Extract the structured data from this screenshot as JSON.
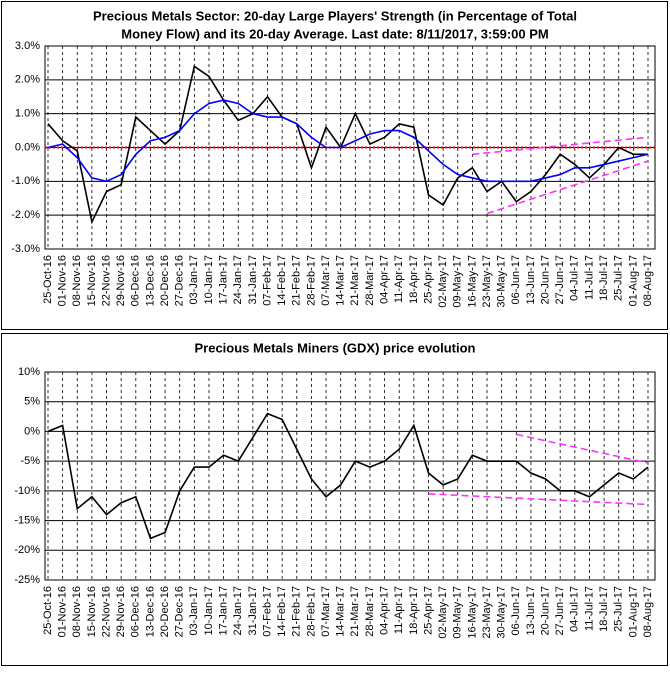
{
  "chart_data": [
    {
      "type": "line",
      "title": [
        "Precious Metals Sector: 20-day Large Players' Strength (in Percentage of Total",
        "Money Flow) and its 20-day Average. Last date: 8/11/2017, 3:59:00 PM"
      ],
      "categories": [
        "25-Oct-16",
        "01-Nov-16",
        "08-Nov-16",
        "15-Nov-16",
        "22-Nov-16",
        "29-Nov-16",
        "06-Dec-16",
        "13-Dec-16",
        "20-Dec-16",
        "27-Dec-16",
        "03-Jan-17",
        "10-Jan-17",
        "17-Jan-17",
        "24-Jan-17",
        "31-Jan-17",
        "07-Feb-17",
        "14-Feb-17",
        "21-Feb-17",
        "28-Feb-17",
        "07-Mar-17",
        "14-Mar-17",
        "21-Mar-17",
        "28-Mar-17",
        "04-Apr-17",
        "11-Apr-17",
        "18-Apr-17",
        "25-Apr-17",
        "02-May-17",
        "09-May-17",
        "16-May-17",
        "23-May-17",
        "30-May-17",
        "06-Jun-17",
        "13-Jun-17",
        "20-Jun-17",
        "27-Jun-17",
        "04-Jul-17",
        "11-Jul-17",
        "18-Jul-17",
        "25-Jul-17",
        "01-Aug-17",
        "08-Aug-17"
      ],
      "series": [
        {
          "color": "#000000",
          "values": [
            0.7,
            0.2,
            -0.1,
            -2.2,
            -1.3,
            -1.1,
            0.9,
            0.5,
            0.1,
            0.5,
            2.4,
            2.1,
            1.4,
            0.8,
            1.0,
            1.5,
            0.9,
            0.7,
            -0.6,
            0.6,
            0.0,
            1.0,
            0.1,
            0.3,
            0.7,
            0.6,
            -1.4,
            -1.7,
            -0.9,
            -0.6,
            -1.3,
            -1.0,
            -1.6,
            -1.3,
            -0.8,
            -0.2,
            -0.5,
            -0.9,
            -0.5,
            0.0,
            -0.2,
            -0.2
          ]
        },
        {
          "color": "#0000ff",
          "values": [
            0.0,
            0.1,
            -0.3,
            -0.9,
            -1.0,
            -0.8,
            -0.2,
            0.2,
            0.3,
            0.5,
            1.0,
            1.3,
            1.4,
            1.3,
            1.0,
            0.9,
            0.9,
            0.7,
            0.3,
            0.0,
            0.0,
            0.2,
            0.4,
            0.5,
            0.5,
            0.3,
            -0.1,
            -0.5,
            -0.8,
            -0.9,
            -1.0,
            -1.0,
            -1.0,
            -1.0,
            -0.9,
            -0.8,
            -0.6,
            -0.6,
            -0.5,
            -0.4,
            -0.3,
            -0.2
          ]
        }
      ],
      "reference_line": {
        "value": 0,
        "color": "#ff0000"
      },
      "trendlines": [
        {
          "x": [
            "16-May-17",
            "08-Aug-17"
          ],
          "values": [
            -0.2,
            0.3
          ],
          "color": "#ff33ff"
        },
        {
          "x": [
            "23-May-17",
            "08-Aug-17"
          ],
          "values": [
            -1.95,
            -0.4
          ],
          "color": "#ff33ff"
        }
      ],
      "ylim": [
        -3,
        3
      ],
      "yticks": [
        {
          "value": -3,
          "label": "-3.0%"
        },
        {
          "value": -2,
          "label": "-2.0%"
        },
        {
          "value": -1,
          "label": "-1.0%"
        },
        {
          "value": 0,
          "label": "0.0%"
        },
        {
          "value": 1,
          "label": "1.0%"
        },
        {
          "value": 2,
          "label": "2.0%"
        },
        {
          "value": 3,
          "label": "3.0%"
        }
      ],
      "grid": true
    },
    {
      "type": "line",
      "title": [
        "Precious Metals Miners (GDX) price evolution"
      ],
      "categories": [
        "25-Oct-16",
        "01-Nov-16",
        "08-Nov-16",
        "15-Nov-16",
        "22-Nov-16",
        "29-Nov-16",
        "06-Dec-16",
        "13-Dec-16",
        "20-Dec-16",
        "27-Dec-16",
        "03-Jan-17",
        "10-Jan-17",
        "17-Jan-17",
        "24-Jan-17",
        "31-Jan-17",
        "07-Feb-17",
        "14-Feb-17",
        "21-Feb-17",
        "28-Feb-17",
        "07-Mar-17",
        "14-Mar-17",
        "21-Mar-17",
        "28-Mar-17",
        "04-Apr-17",
        "11-Apr-17",
        "18-Apr-17",
        "25-Apr-17",
        "02-May-17",
        "09-May-17",
        "16-May-17",
        "23-May-17",
        "30-May-17",
        "06-Jun-17",
        "13-Jun-17",
        "20-Jun-17",
        "27-Jun-17",
        "04-Jul-17",
        "11-Jul-17",
        "18-Jul-17",
        "25-Jul-17",
        "01-Aug-17",
        "08-Aug-17"
      ],
      "series": [
        {
          "color": "#000000",
          "values": [
            0,
            1,
            -13,
            -11,
            -14,
            -12,
            -11,
            -18,
            -17,
            -10,
            -6,
            -6,
            -4,
            -5,
            -1,
            3,
            2,
            -3,
            -8,
            -11,
            -9,
            -5,
            -6,
            -5,
            -3,
            1,
            -7,
            -9,
            -8,
            -4,
            -5,
            -5,
            -5,
            -7,
            -8,
            -10,
            -10,
            -11,
            -9,
            -7,
            -8,
            -6
          ]
        }
      ],
      "trendlines": [
        {
          "x": [
            "06-Jun-17",
            "08-Aug-17"
          ],
          "values": [
            -0.5,
            -5.3
          ],
          "color": "#ff33ff"
        },
        {
          "x": [
            "25-Apr-17",
            "08-Aug-17"
          ],
          "values": [
            -10.5,
            -12.3
          ],
          "color": "#ff33ff"
        }
      ],
      "ylim": [
        -25,
        10
      ],
      "yticks": [
        {
          "value": -25,
          "label": "-25%"
        },
        {
          "value": -20,
          "label": "-20%"
        },
        {
          "value": -15,
          "label": "-15%"
        },
        {
          "value": -10,
          "label": "-10%"
        },
        {
          "value": -5,
          "label": "-5%"
        },
        {
          "value": 0,
          "label": "0%"
        },
        {
          "value": 5,
          "label": "5%"
        },
        {
          "value": 10,
          "label": "10%"
        }
      ],
      "grid": true
    }
  ]
}
